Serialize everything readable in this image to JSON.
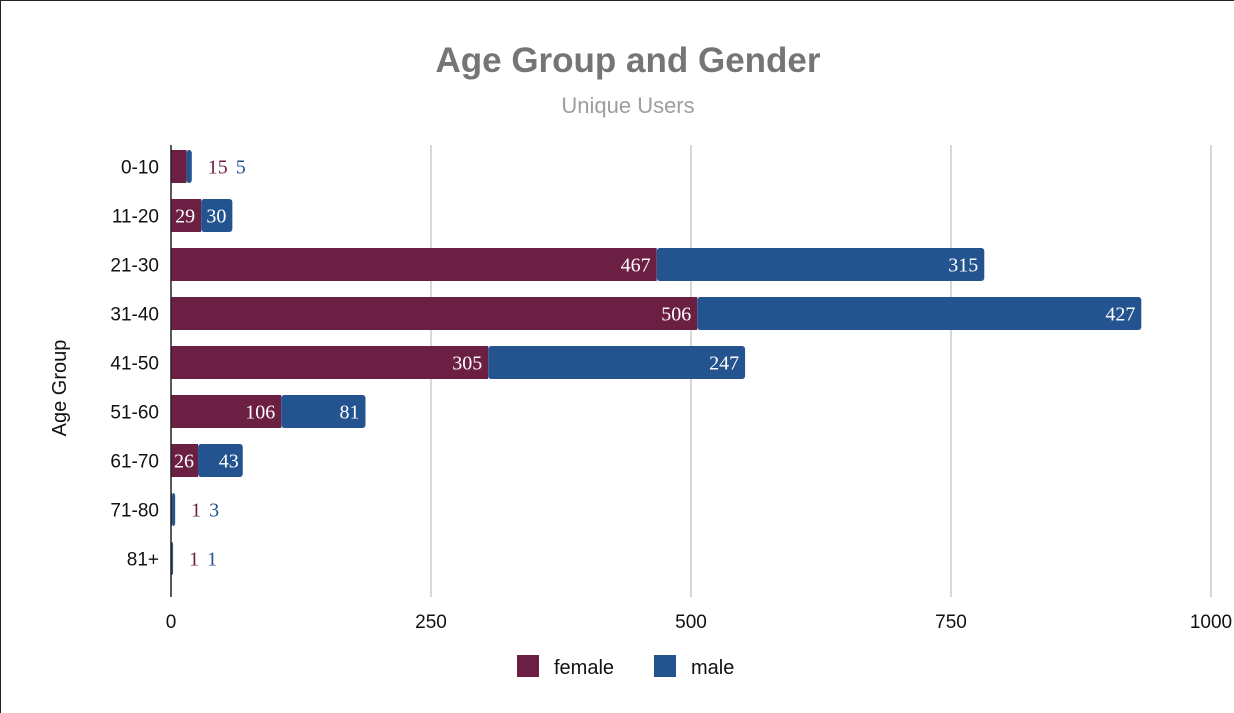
{
  "chart_data": {
    "type": "bar",
    "orientation": "horizontal",
    "stacked": true,
    "title": "Age Group and Gender",
    "subtitle": "Unique Users",
    "ylabel": "Age Group",
    "xlabel": "",
    "categories": [
      "0-10",
      "11-20",
      "21-30",
      "31-40",
      "41-50",
      "51-60",
      "61-70",
      "71-80",
      "81+"
    ],
    "series": [
      {
        "name": "female",
        "color": "#6b1f43",
        "values": [
          15,
          29,
          467,
          506,
          305,
          106,
          26,
          1,
          1
        ]
      },
      {
        "name": "male",
        "color": "#24548f",
        "values": [
          5,
          30,
          315,
          427,
          247,
          81,
          43,
          3,
          1
        ]
      }
    ],
    "xlim": [
      0,
      1000
    ],
    "xticks": [
      "0",
      "250",
      "500",
      "750",
      "1000"
    ],
    "grid": true,
    "legend": "bottom"
  }
}
